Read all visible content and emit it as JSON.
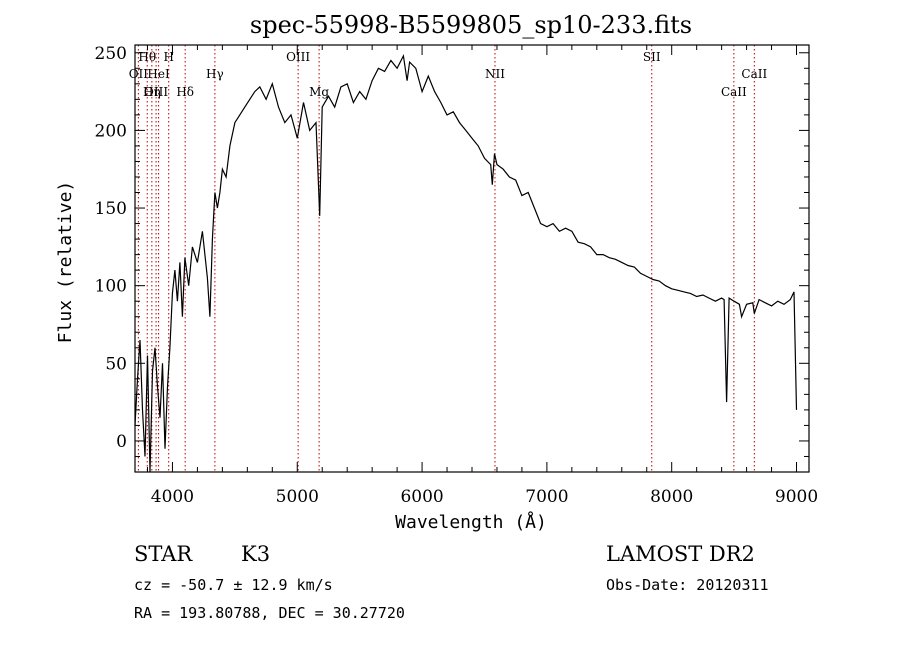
{
  "chart_data": {
    "type": "line",
    "title": "spec-55998-B5599805_sp10-233.fits",
    "xlabel": "Wavelength (Å)",
    "ylabel": "Flux (relative)",
    "xlim": [
      3700,
      9100
    ],
    "ylim": [
      -20,
      255
    ],
    "x_ticks": [
      4000,
      5000,
      6000,
      7000,
      8000,
      9000
    ],
    "y_ticks": [
      0,
      50,
      100,
      150,
      200,
      250
    ],
    "grid": false,
    "series": [
      {
        "x": [
          3700,
          3720,
          3740,
          3760,
          3780,
          3800,
          3820,
          3840,
          3860,
          3880,
          3900,
          3920,
          3940,
          3960,
          3980,
          4000,
          4020,
          4040,
          4060,
          4080,
          4100,
          4130,
          4160,
          4200,
          4240,
          4280,
          4300,
          4320,
          4340,
          4360,
          4380,
          4400,
          4430,
          4460,
          4500,
          4540,
          4580,
          4620,
          4660,
          4700,
          4750,
          4800,
          4850,
          4900,
          4950,
          5000,
          5050,
          5100,
          5150,
          5180,
          5200,
          5250,
          5300,
          5350,
          5400,
          5450,
          5500,
          5550,
          5600,
          5650,
          5700,
          5750,
          5800,
          5850,
          5880,
          5900,
          5950,
          6000,
          6050,
          6100,
          6150,
          6200,
          6250,
          6300,
          6350,
          6400,
          6450,
          6500,
          6550,
          6563,
          6580,
          6600,
          6650,
          6700,
          6750,
          6800,
          6850,
          6900,
          6950,
          7000,
          7050,
          7100,
          7150,
          7200,
          7250,
          7300,
          7350,
          7400,
          7450,
          7500,
          7550,
          7600,
          7650,
          7700,
          7750,
          7800,
          7850,
          7900,
          7950,
          8000,
          8050,
          8100,
          8150,
          8200,
          8250,
          8300,
          8350,
          8400,
          8420,
          8440,
          8460,
          8500,
          8542,
          8560,
          8600,
          8650,
          8662,
          8700,
          8750,
          8800,
          8850,
          8900,
          8950,
          8980,
          9000
        ],
        "values": [
          10,
          40,
          65,
          20,
          -10,
          55,
          -25,
          45,
          60,
          35,
          15,
          50,
          -5,
          35,
          60,
          95,
          110,
          90,
          115,
          80,
          118,
          100,
          125,
          115,
          135,
          105,
          80,
          130,
          160,
          150,
          160,
          175,
          170,
          190,
          205,
          210,
          215,
          220,
          225,
          228,
          220,
          230,
          215,
          205,
          210,
          195,
          218,
          200,
          205,
          145,
          215,
          222,
          215,
          228,
          230,
          218,
          225,
          220,
          232,
          240,
          238,
          245,
          240,
          248,
          232,
          244,
          240,
          225,
          235,
          225,
          218,
          210,
          212,
          205,
          200,
          195,
          190,
          182,
          178,
          165,
          185,
          178,
          175,
          170,
          168,
          158,
          160,
          150,
          140,
          138,
          140,
          135,
          137,
          135,
          128,
          127,
          125,
          120,
          120,
          118,
          117,
          115,
          113,
          112,
          108,
          106,
          104,
          103,
          100,
          98,
          97,
          96,
          95,
          93,
          94,
          92,
          90,
          92,
          91,
          25,
          92,
          90,
          88,
          80,
          88,
          89,
          82,
          91,
          89,
          87,
          90,
          88,
          91,
          96,
          20
        ]
      }
    ],
    "lines": [
      {
        "label": "Hθ",
        "x": 3798,
        "row": 1
      },
      {
        "label": "OII",
        "x": 3727,
        "row": 2
      },
      {
        "label": "OIII",
        "x": 3869,
        "row": 3
      },
      {
        "label": "HeI",
        "x": 3889,
        "row": 2
      },
      {
        "label": "Hη",
        "x": 3835,
        "row": 3
      },
      {
        "label": "H",
        "x": 3970,
        "row": 1
      },
      {
        "label": "Hδ",
        "x": 4102,
        "row": 3
      },
      {
        "label": "Hγ",
        "x": 4340,
        "row": 2
      },
      {
        "label": "OIII",
        "x": 5007,
        "row": 1
      },
      {
        "label": "Mg",
        "x": 5175,
        "row": 3
      },
      {
        "label": "NII",
        "x": 6584,
        "row": 2
      },
      {
        "label": "SII",
        "x": 7840,
        "row": 1
      },
      {
        "label": "CaII",
        "x": 8498,
        "row": 3
      },
      {
        "label": "CaII",
        "x": 8662,
        "row": 2
      }
    ]
  },
  "info": {
    "object_type": "STAR",
    "subclass": "K3",
    "survey": "LAMOST DR2",
    "cz": "cz = -50.7 ± 12.9 km/s",
    "obs_date": "Obs-Date: 20120311",
    "coords": "RA = 193.80788, DEC =  30.27720"
  }
}
